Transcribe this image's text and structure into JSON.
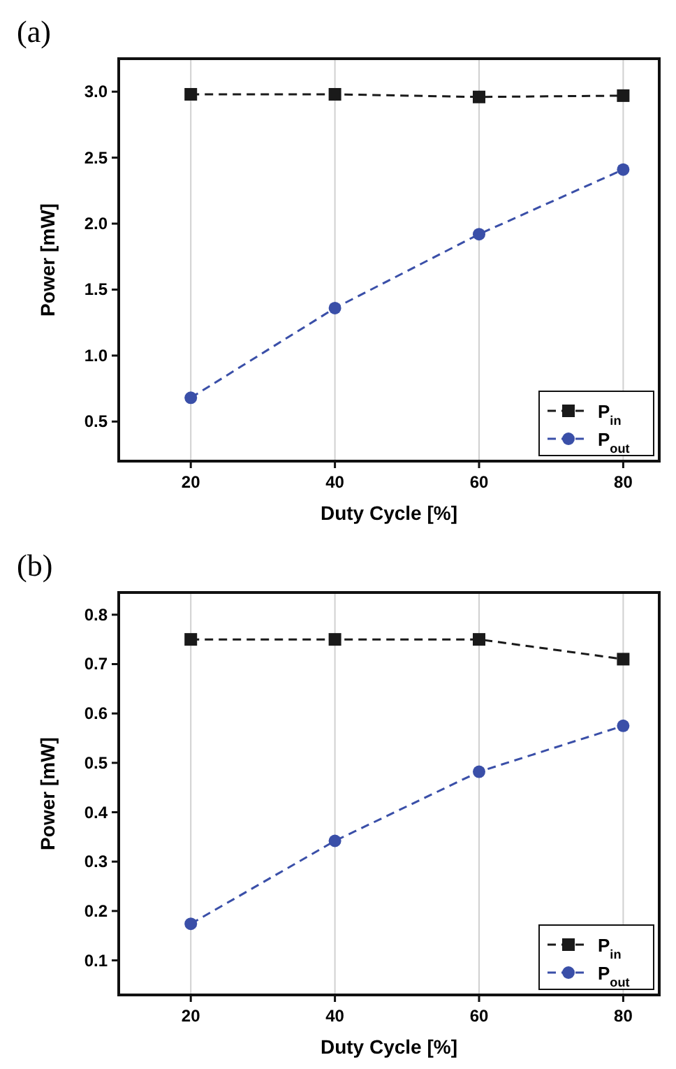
{
  "chart_data": [
    {
      "type": "line",
      "title": "(a)",
      "xlabel": "Duty Cycle [%]",
      "ylabel": "Power [mW]",
      "x": [
        20,
        40,
        60,
        80
      ],
      "xlim": [
        10,
        85
      ],
      "xticks": [
        20,
        40,
        60,
        80
      ],
      "ylim": [
        0.2,
        3.25
      ],
      "yticks": [
        0.5,
        {
          "value": 1,
          "label": "1.0"
        },
        1.5,
        {
          "value": 2,
          "label": "2.0"
        },
        2.5,
        {
          "value": 3,
          "label": "3.0"
        }
      ],
      "grid": "x",
      "legend": "bottom right",
      "line_style": "dashed",
      "series": [
        {
          "name": "P$_{in}$",
          "color": "#1a1a1a",
          "marker": "square",
          "values": [
            2.98,
            2.98,
            2.96,
            2.97
          ]
        },
        {
          "name": "P$_{out}$",
          "color": "#3a4fa8",
          "marker": "circle",
          "values": [
            0.68,
            1.36,
            1.92,
            2.41
          ]
        }
      ]
    },
    {
      "type": "line",
      "title": "(b)",
      "xlabel": "Duty Cycle [%]",
      "ylabel": "Power [mW]",
      "x": [
        20,
        40,
        60,
        80
      ],
      "xlim": [
        10,
        85
      ],
      "xticks": [
        20,
        40,
        60,
        80
      ],
      "ylim": [
        0.03,
        0.845
      ],
      "yticks": [
        0.1,
        0.2,
        0.3,
        0.4,
        0.5,
        0.6,
        0.7,
        0.8
      ],
      "grid": "x",
      "legend": "bottom right",
      "line_style": "dashed",
      "series": [
        {
          "name": "P$_{in}$",
          "color": "#1a1a1a",
          "marker": "square",
          "values": [
            0.75,
            0.75,
            0.75,
            0.71
          ]
        },
        {
          "name": "P$_{out}$",
          "color": "#3a4fa8",
          "marker": "circle",
          "values": [
            0.174,
            0.342,
            0.482,
            0.575
          ]
        }
      ]
    }
  ]
}
